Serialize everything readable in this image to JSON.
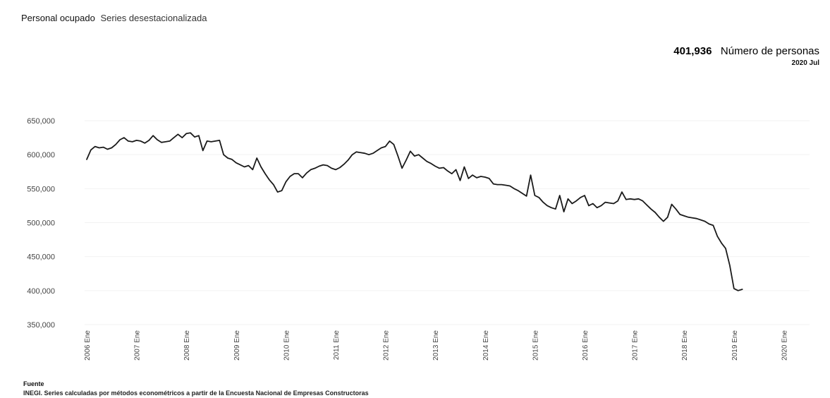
{
  "header": {
    "title": "Personal ocupado",
    "subtitle": "Series desestacionalizada"
  },
  "headline": {
    "value": "401,936",
    "unit": "Número de personas",
    "period": "2020 Jul"
  },
  "footer": {
    "source_label": "Fuente",
    "source_text": "INEGI. Series calculadas por métodos econométricos a partir de la Encuesta Nacional de Empresas Constructoras"
  },
  "colors": {
    "line": "#1a1a1a",
    "grid": "#f2f2f2",
    "axis_text": "#444444"
  },
  "chart_data": {
    "type": "line",
    "title": "Personal ocupado",
    "subtitle": "Series desestacionalizada",
    "ylim": [
      350000,
      650000
    ],
    "y_ticks": [
      350000,
      400000,
      450000,
      500000,
      550000,
      600000,
      650000
    ],
    "y_tick_labels": [
      "350,000",
      "400,000",
      "450,000",
      "500,000",
      "550,000",
      "600,000",
      "650,000"
    ],
    "x_range": [
      "2006-01",
      "2020-07"
    ],
    "x_tick_labels": [
      "2006 Ene",
      "2007 Ene",
      "2008 Ene",
      "2009 Ene",
      "2010 Ene",
      "2011 Ene",
      "2012 Ene",
      "2013 Ene",
      "2014 Ene",
      "2015 Ene",
      "2016 Ene",
      "2017 Ene",
      "2018 Ene",
      "2019 Ene",
      "2020 Ene"
    ],
    "grid": true,
    "legend": "none",
    "series": [
      {
        "values": [
          593000,
          607000,
          612000,
          610000,
          611000,
          608000,
          610000,
          615000,
          622000,
          625000,
          620000,
          619000,
          621000,
          620000,
          617000,
          621000,
          628000,
          622000,
          618000,
          619000,
          620000,
          625000,
          630000,
          625000,
          631000,
          632000,
          626000,
          628000,
          606000,
          620000,
          619000,
          620000,
          621000,
          600000,
          595000,
          593000,
          588000,
          585000,
          582000,
          584000,
          578000,
          595000,
          582000,
          572000,
          563000,
          556000,
          545000,
          547000,
          560000,
          568000,
          572000,
          572000,
          566000,
          573000,
          578000,
          580000,
          583000,
          585000,
          584000,
          580000,
          578000,
          581000,
          586000,
          592000,
          600000,
          604000,
          603000,
          602000,
          600000,
          602000,
          606000,
          610000,
          612000,
          620000,
          615000,
          598000,
          580000,
          592000,
          605000,
          598000,
          600000,
          595000,
          590000,
          587000,
          583000,
          580000,
          581000,
          576000,
          572000,
          578000,
          562000,
          582000,
          565000,
          570000,
          566000,
          568000,
          567000,
          565000,
          557000,
          556000,
          556000,
          555000,
          554000,
          550000,
          547000,
          543000,
          539000,
          570000,
          540000,
          537000,
          530000,
          525000,
          522000,
          520000,
          540000,
          516000,
          535000,
          528000,
          532000,
          537000,
          540000,
          525000,
          528000,
          522000,
          525000,
          530000,
          529000,
          528000,
          532000,
          545000,
          534000,
          535000,
          534000,
          535000,
          532000,
          526000,
          520000,
          515000,
          508000,
          502000,
          508000,
          527000,
          520000,
          512000,
          510000,
          508000,
          507000,
          506000,
          504000,
          502000,
          498000,
          496000,
          480000,
          470000,
          462000,
          437000,
          403000,
          400000,
          401936
        ]
      }
    ]
  }
}
